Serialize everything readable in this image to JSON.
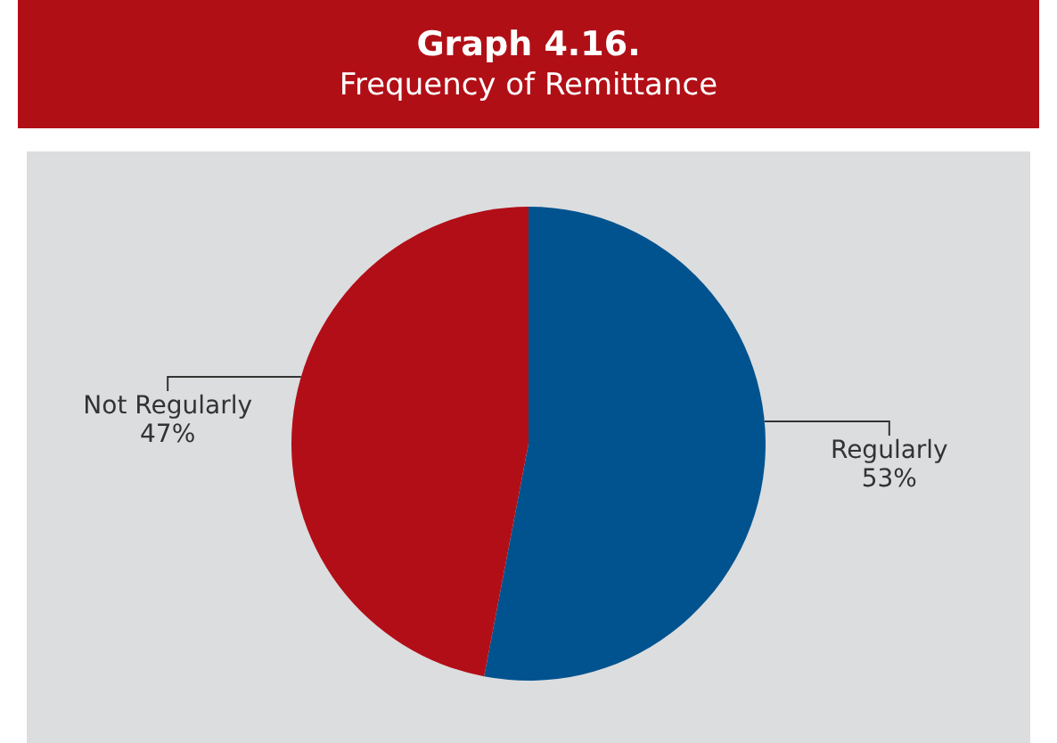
{
  "chart_data": {
    "type": "pie",
    "title": "Graph 4.16.",
    "subtitle": "Frequency of Remittance",
    "categories": [
      "Regularly",
      "Not Regularly"
    ],
    "values": [
      53,
      47
    ],
    "colors": [
      "#00538f",
      "#b20e17"
    ],
    "value_labels": [
      "53%",
      "47%"
    ],
    "legend": false
  }
}
